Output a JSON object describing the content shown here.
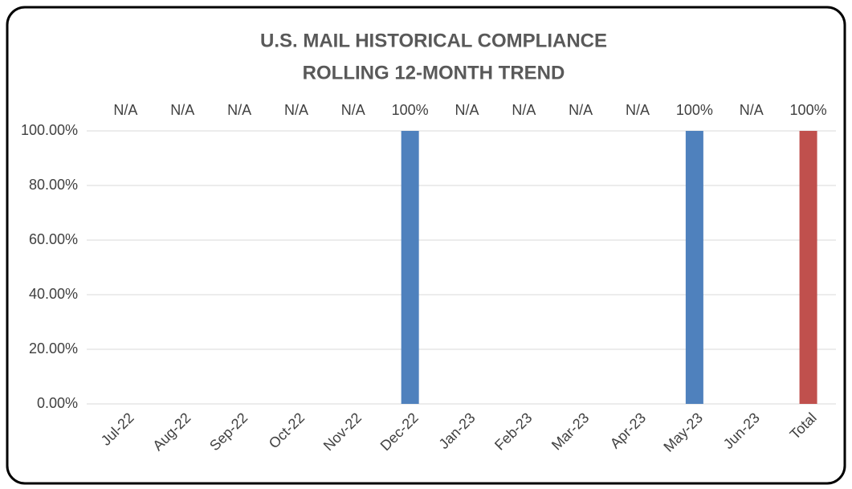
{
  "chart_data": {
    "type": "bar",
    "title": [
      "U.S. MAIL HISTORICAL COMPLIANCE",
      "ROLLING 12-MONTH TREND"
    ],
    "categories": [
      "Jul-22",
      "Aug-22",
      "Sep-22",
      "Oct-22",
      "Nov-22",
      "Dec-22",
      "Jan-23",
      "Feb-23",
      "Mar-23",
      "Apr-23",
      "May-23",
      "Jun-23",
      "Total"
    ],
    "values": [
      null,
      null,
      null,
      null,
      null,
      100,
      null,
      null,
      null,
      null,
      100,
      null,
      100
    ],
    "value_labels": [
      "N/A",
      "N/A",
      "N/A",
      "N/A",
      "N/A",
      "100%",
      "N/A",
      "N/A",
      "N/A",
      "N/A",
      "100%",
      "N/A",
      "100%"
    ],
    "colors": [
      "#4f81bd",
      "#4f81bd",
      "#4f81bd",
      "#4f81bd",
      "#4f81bd",
      "#4f81bd",
      "#4f81bd",
      "#4f81bd",
      "#4f81bd",
      "#4f81bd",
      "#4f81bd",
      "#4f81bd",
      "#c0504d"
    ],
    "ylim": [
      0,
      100
    ],
    "yticks": [
      {
        "value": 0,
        "label": "0.00%"
      },
      {
        "value": 20,
        "label": "20.00%"
      },
      {
        "value": 40,
        "label": "40.00%"
      },
      {
        "value": 60,
        "label": "60.00%"
      },
      {
        "value": 80,
        "label": "80.00%"
      },
      {
        "value": 100,
        "label": "100.00%"
      }
    ],
    "grid": true
  }
}
